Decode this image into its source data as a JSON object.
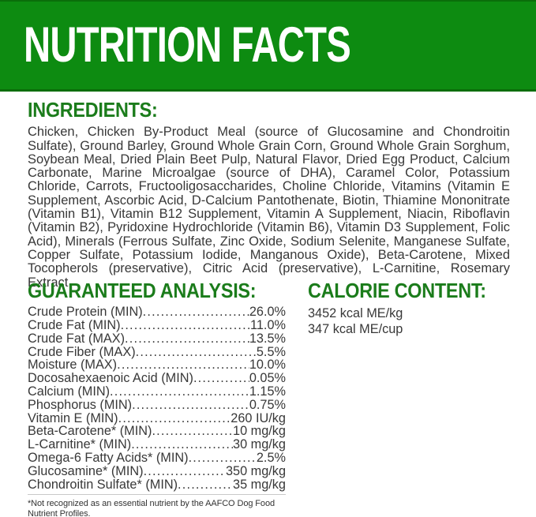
{
  "header": {
    "title": "NUTRITION FACTS"
  },
  "ingredients": {
    "heading": "INGREDIENTS:",
    "text": "Chicken, Chicken By-Product Meal (source of Glucosamine and Chondroitin Sulfate), Ground Barley, Ground Whole Grain Corn, Ground Whole Grain Sorghum, Soybean Meal, Dried Plain Beet Pulp, Natural Flavor, Dried Egg Product, Calcium Carbonate, Marine Microalgae (source of DHA), Caramel Color, Potassium Chloride, Carrots, Fructooligosaccharides, Choline Chloride, Vitamins (Vitamin E Supplement, Ascorbic Acid, D-Calcium Pantothenate, Biotin, Thiamine Mononitrate (Vitamin B1), Vitamin B12 Supplement, Vitamin A Supplement, Niacin, Riboflavin (Vitamin B2), Pyridoxine Hydrochloride (Vitamin B6), Vitamin D3 Supplement, Folic Acid), Minerals (Ferrous Sulfate, Zinc Oxide, Sodium Selenite, Manganese Sulfate, Copper Sulfate, Potassium Iodide, Manganous Oxide), Beta-Carotene, Mixed Tocopherols (preservative), Citric Acid (preservative), L-Carnitine, Rosemary Extract"
  },
  "guaranteed_analysis": {
    "heading": "GUARANTEED ANALYSIS:",
    "rows": [
      {
        "label": "Crude Protein (MIN)",
        "value": "26.0%"
      },
      {
        "label": "Crude Fat (MIN)",
        "value": "11.0%"
      },
      {
        "label": "Crude Fat (MAX)",
        "value": "13.5%"
      },
      {
        "label": "Crude Fiber (MAX)",
        "value": "5.5%"
      },
      {
        "label": "Moisture (MAX)",
        "value": "10.0%"
      },
      {
        "label": "Docosahexaenoic Acid (MIN)",
        "value": "0.05%"
      },
      {
        "label": "Calcium (MIN)",
        "value": "1.15%"
      },
      {
        "label": "Phosphorus (MIN)",
        "value": "0.75%"
      },
      {
        "label": "Vitamin E (MIN)",
        "value": "260 IU/kg"
      },
      {
        "label": "Beta-Carotene* (MIN)",
        "value": "10 mg/kg"
      },
      {
        "label": "L-Carnitine* (MIN)",
        "value": "30 mg/kg"
      },
      {
        "label": "Omega-6 Fatty Acids* (MIN)",
        "value": "2.5%"
      },
      {
        "label": "Glucosamine* (MIN)",
        "value": "350 mg/kg"
      },
      {
        "label": "Chondroitin Sulfate* (MIN)",
        "value": "35 mg/kg"
      }
    ]
  },
  "calorie_content": {
    "heading": "CALORIE CONTENT:",
    "lines": [
      "3452 kcal ME/kg",
      "347 kcal ME/cup"
    ]
  },
  "footnote": "*Not recognized as an essential nutrient by the AAFCO Dog Food Nutrient Profiles.",
  "colors": {
    "banner_green": "#0d8b11",
    "banner_border_green": "#0a6e0a",
    "heading_green": "#1b7c1b",
    "body_text": "#383838"
  }
}
